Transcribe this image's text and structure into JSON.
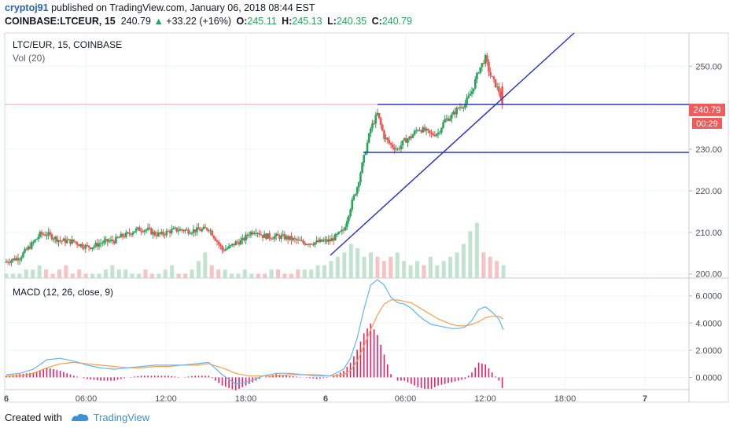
{
  "header": {
    "author": "cryptoj91",
    "published_text": "published on TradingView.com, January 06, 2018 08:44 EST",
    "symbol": "COINBASE:LTCEUR, 15",
    "last": "240.79",
    "arrow": "▲",
    "change": "+33.22 (+16%)",
    "o_label": "O:",
    "o_value": "245.11",
    "h_label": "H:",
    "h_value": "245.13",
    "l_label": "L:",
    "l_value": "240.35",
    "c_label": "C:",
    "c_value": "240.79"
  },
  "pane_main": {
    "title": "LTC/EUR, 15, COINBASE",
    "vol_label": "Vol (20)"
  },
  "pane_macd": {
    "title": "MACD (12, 26, close, 9)"
  },
  "price_badge": {
    "value": "240.79",
    "timer": "00:29",
    "color": "#f05b5b"
  },
  "colors": {
    "up": "#26a65b",
    "down": "#ef5350",
    "macd": "#64b5f6",
    "signal": "#ff9c4a",
    "trendline": "#2b36c9",
    "hist": "#e91e63"
  },
  "footer": {
    "created_with": "Created with",
    "brand": "TradingView"
  },
  "chart_data": [
    {
      "type": "candlestick",
      "title": "LTC/EUR, 15, COINBASE",
      "ylim": [
        199,
        258
      ],
      "y_ticks": [
        "200.00",
        "210.00",
        "220.00",
        "230.00",
        "240.00",
        "250.00"
      ],
      "x_ticks": [
        "6",
        "06:00",
        "12:00",
        "18:00",
        "6",
        "06:00",
        "12:00",
        "18:00",
        "7"
      ],
      "grid": true,
      "close_path": [
        [
          0,
          203.0
        ],
        [
          6,
          203.5
        ],
        [
          12,
          204.0
        ],
        [
          18,
          205.8
        ],
        [
          24,
          207.5
        ],
        [
          30,
          209.5
        ],
        [
          36,
          209.6
        ],
        [
          42,
          208.8
        ],
        [
          48,
          208.0
        ],
        [
          54,
          207.9
        ],
        [
          60,
          207.8
        ],
        [
          66,
          207.0
        ],
        [
          72,
          206.5
        ],
        [
          78,
          206.7
        ],
        [
          84,
          207.5
        ],
        [
          90,
          207.8
        ],
        [
          96,
          208.0
        ],
        [
          102,
          209.0
        ],
        [
          108,
          209.5
        ],
        [
          114,
          210.5
        ],
        [
          120,
          210.8
        ],
        [
          126,
          210.6
        ],
        [
          132,
          209.6
        ],
        [
          138,
          209.5
        ],
        [
          144,
          210.2
        ],
        [
          150,
          210.6
        ],
        [
          156,
          210.6
        ],
        [
          162,
          210.4
        ],
        [
          168,
          210.5
        ],
        [
          174,
          210.6
        ],
        [
          180,
          211.0
        ],
        [
          186,
          208.5
        ],
        [
          192,
          205.8
        ],
        [
          198,
          206.3
        ],
        [
          204,
          207.5
        ],
        [
          210,
          208.0
        ],
        [
          216,
          209.8
        ],
        [
          222,
          210.5
        ],
        [
          228,
          209.2
        ],
        [
          234,
          209.0
        ],
        [
          240,
          209.0
        ],
        [
          246,
          208.9
        ],
        [
          252,
          208.5
        ],
        [
          258,
          208.0
        ],
        [
          264,
          207.5
        ],
        [
          270,
          207.5
        ],
        [
          276,
          207.6
        ],
        [
          282,
          207.9
        ],
        [
          288,
          208.0
        ],
        [
          294,
          209.2
        ],
        [
          300,
          210.5
        ],
        [
          306,
          216.0
        ],
        [
          312,
          221.0
        ],
        [
          318,
          228.0
        ],
        [
          324,
          235.0
        ],
        [
          330,
          238.5
        ],
        [
          336,
          233.0
        ],
        [
          342,
          231.0
        ],
        [
          348,
          230.0
        ],
        [
          354,
          232.0
        ],
        [
          360,
          233.0
        ],
        [
          366,
          235.0
        ],
        [
          372,
          234.5
        ],
        [
          378,
          233.5
        ],
        [
          384,
          234.0
        ],
        [
          390,
          237.0
        ],
        [
          396,
          238.0
        ],
        [
          402,
          240.0
        ],
        [
          408,
          241.0
        ],
        [
          414,
          244.0
        ],
        [
          420,
          249.0
        ],
        [
          426,
          252.0
        ],
        [
          430,
          248.0
        ],
        [
          434,
          246.0
        ],
        [
          438,
          244.0
        ],
        [
          442,
          240.79
        ]
      ]
    },
    {
      "type": "bar",
      "title": "Vol (20)",
      "series": [
        {
          "values": [
            1,
            1,
            1,
            2,
            2,
            3,
            2,
            1,
            2,
            3,
            1,
            2,
            1,
            1,
            1,
            2,
            3,
            2,
            2,
            1,
            1,
            2,
            1,
            1,
            2,
            3,
            1,
            1,
            2,
            4,
            6,
            3,
            2,
            2,
            1,
            1,
            2,
            1,
            1,
            1,
            2,
            2,
            1,
            1,
            2,
            2,
            2,
            3,
            3,
            4,
            5,
            6,
            8,
            7,
            5,
            6,
            5,
            4,
            5,
            6,
            4,
            3,
            4,
            3,
            5,
            3,
            4,
            5,
            6,
            8,
            11,
            13,
            6,
            5,
            4,
            3
          ]
        }
      ]
    },
    {
      "type": "line",
      "title": "MACD (12, 26, close, 9)",
      "ylim": [
        -0.9,
        7.2
      ],
      "y_ticks": [
        "0.0000",
        "2.0000",
        "4.0000",
        "6.0000"
      ],
      "x": [
        0,
        12,
        24,
        36,
        48,
        60,
        72,
        84,
        96,
        108,
        120,
        132,
        144,
        156,
        168,
        180,
        192,
        204,
        216,
        228,
        240,
        252,
        264,
        276,
        288,
        300,
        306,
        312,
        318,
        324,
        330,
        336,
        342,
        348,
        354,
        360,
        366,
        372,
        378,
        384,
        390,
        396,
        402,
        408,
        414,
        420,
        426,
        432,
        438,
        442
      ],
      "series": [
        {
          "name": "MACD",
          "values": [
            0.2,
            0.3,
            0.6,
            1.3,
            1.4,
            1.2,
            0.9,
            0.7,
            0.6,
            0.7,
            0.8,
            0.9,
            0.9,
            0.9,
            1.0,
            1.1,
            0.2,
            -0.5,
            -0.3,
            0.1,
            0.3,
            0.3,
            0.2,
            0.1,
            0.1,
            0.6,
            1.4,
            2.9,
            5.0,
            6.8,
            7.2,
            6.8,
            5.9,
            5.5,
            5.4,
            5.1,
            4.6,
            4.2,
            3.9,
            3.8,
            3.7,
            3.6,
            3.6,
            3.7,
            4.2,
            5.0,
            5.2,
            4.8,
            4.3,
            3.5
          ]
        },
        {
          "name": "Signal",
          "values": [
            0.1,
            0.1,
            0.3,
            0.7,
            1.0,
            1.1,
            1.0,
            0.9,
            0.8,
            0.7,
            0.7,
            0.8,
            0.8,
            0.9,
            0.9,
            1.0,
            0.7,
            0.3,
            0.1,
            0.1,
            0.1,
            0.2,
            0.2,
            0.2,
            0.1,
            0.2,
            0.5,
            1.2,
            2.3,
            3.5,
            4.6,
            5.4,
            5.7,
            5.7,
            5.6,
            5.5,
            5.2,
            4.9,
            4.6,
            4.3,
            4.1,
            3.9,
            3.8,
            3.8,
            3.9,
            4.1,
            4.4,
            4.5,
            4.5,
            4.3
          ]
        }
      ]
    }
  ]
}
